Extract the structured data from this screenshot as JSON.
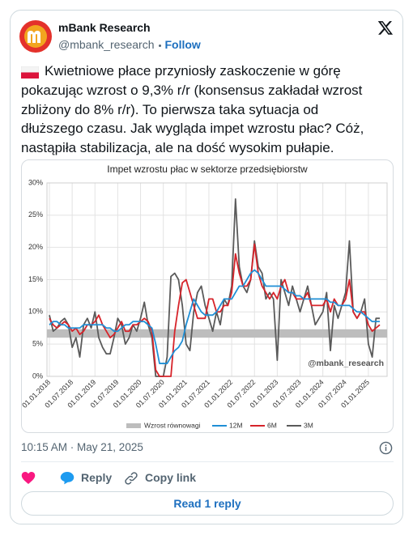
{
  "author": {
    "name": "mBank Research",
    "handle": "@mbank_research",
    "follow": "Follow"
  },
  "text_lines": [
    "Kwietniowe płace przyniosły zaskoczenie w górę",
    "pokazując wzrost o 9,3% r/r (konsensus zakładał wzrost",
    "zbliżony do 8% r/r). To pierwsza taka sytuacja od",
    "dłuższego czasu. Jak wygląda impet wzrostu płac? Cóż,",
    "nastąpiła stabilizacja, ale na dość wysokim pułapie."
  ],
  "chart_data": {
    "type": "line",
    "title": "Impet wzrostu płac w sektorze przedsiębiorstw",
    "categories": [
      "01.01.2018",
      null,
      null,
      null,
      null,
      null,
      "01.07.2018",
      null,
      null,
      null,
      null,
      null,
      "01.01.2019",
      null,
      null,
      null,
      null,
      null,
      "01.07.2019",
      null,
      null,
      null,
      null,
      null,
      "01.01.2020",
      null,
      null,
      null,
      null,
      null,
      "01.07.2020",
      null,
      null,
      null,
      null,
      null,
      "01.01.2021",
      null,
      null,
      null,
      null,
      null,
      "01.07.2021",
      null,
      null,
      null,
      null,
      null,
      "01.01.2022",
      null,
      null,
      null,
      null,
      null,
      "01.07.2022",
      null,
      null,
      null,
      null,
      null,
      "01.01.2023",
      null,
      null,
      null,
      null,
      null,
      "01.07.2023",
      null,
      null,
      null,
      null,
      null,
      "01.01.2024",
      null,
      null,
      null,
      null,
      null,
      "01.07.2024",
      null,
      null,
      null,
      null,
      null,
      "01.01.2025",
      null,
      null,
      null
    ],
    "equilibrium": {
      "name": "Wzrost równowagi",
      "range": [
        6,
        7.3
      ],
      "color": "#bdbdbd"
    },
    "series": [
      {
        "name": "12M",
        "color": "#1f8fd6",
        "values": [
          8,
          8.5,
          8.5,
          8,
          8,
          7.5,
          7.5,
          7.5,
          7.5,
          8,
          8,
          8,
          8,
          8,
          8,
          7.5,
          7.5,
          7,
          7,
          7.5,
          8,
          8,
          8.5,
          8.5,
          8.5,
          8.5,
          8,
          7.5,
          5,
          2,
          2,
          2,
          3,
          4,
          4.5,
          5.5,
          8,
          10,
          12,
          11,
          10,
          9.5,
          9.5,
          9.5,
          10,
          11,
          12,
          12,
          12,
          13,
          14,
          14,
          15,
          16,
          16.5,
          16,
          15,
          14,
          14,
          14,
          14,
          14,
          13.5,
          13,
          13,
          12.5,
          12.5,
          12,
          12,
          12,
          12,
          12,
          12,
          12,
          11.5,
          11.5,
          11,
          11,
          11,
          11,
          10.5,
          10,
          10,
          9.5,
          9,
          8.5,
          8.5,
          8.5
        ]
      },
      {
        "name": "6M",
        "color": "#d6232a",
        "values": [
          9,
          8,
          7.5,
          8,
          8.5,
          8,
          7,
          7.5,
          6.5,
          7,
          8,
          8,
          8.5,
          9.5,
          8,
          7,
          6,
          6.5,
          7.5,
          8.5,
          7,
          7,
          8,
          8,
          8.5,
          9,
          8.5,
          7,
          1,
          0,
          0,
          0,
          0,
          7,
          11,
          14.5,
          15,
          13,
          11,
          9,
          9,
          9,
          12,
          12,
          10,
          10,
          11,
          11,
          13,
          19,
          16,
          14,
          14,
          15,
          20.5,
          16,
          14,
          13,
          12,
          13,
          12,
          14,
          15,
          13,
          13,
          12,
          12,
          12,
          13,
          11,
          11,
          11,
          11,
          12,
          10,
          12,
          11,
          11,
          12,
          15,
          10,
          9,
          10,
          10,
          8,
          7,
          7.5,
          8
        ]
      },
      {
        "name": "3M",
        "color": "#5a5a5a",
        "values": [
          9.5,
          7,
          7.5,
          8.5,
          9,
          8,
          4.5,
          6,
          3,
          8,
          9,
          7.5,
          10,
          6,
          4.5,
          3.5,
          3.5,
          6,
          9,
          8,
          5,
          6,
          8,
          7,
          9,
          11.5,
          8,
          6,
          0,
          0,
          0,
          3,
          15.5,
          16,
          15,
          11,
          5,
          4,
          10,
          13,
          14,
          11,
          9,
          7,
          10,
          8,
          12,
          11,
          14,
          27.5,
          17,
          14,
          13,
          15,
          21,
          17,
          16,
          12,
          13,
          12,
          2.5,
          15,
          13,
          11,
          14,
          12,
          10,
          12,
          14,
          11,
          8,
          9,
          10,
          13,
          4,
          11,
          9,
          11,
          13,
          21,
          10,
          9,
          10,
          12,
          5,
          3,
          9,
          9
        ]
      }
    ],
    "ylim": [
      0,
      30
    ],
    "yticks": [
      {
        "value": 0,
        "label": "0%"
      },
      {
        "value": 5,
        "label": "5%"
      },
      {
        "value": 10,
        "label": "10%"
      },
      {
        "value": 15,
        "label": "15%"
      },
      {
        "value": 20,
        "label": "20%"
      },
      {
        "value": 25,
        "label": "25%"
      },
      {
        "value": 30,
        "label": "30%"
      }
    ],
    "grid": true,
    "legend": "bottom",
    "watermark": "@mbank_research"
  },
  "timestamp": "10:15 AM · May 21, 2025",
  "actions": {
    "reply": "Reply",
    "copy_link": "Copy link"
  },
  "read_replies": "Read 1 reply"
}
